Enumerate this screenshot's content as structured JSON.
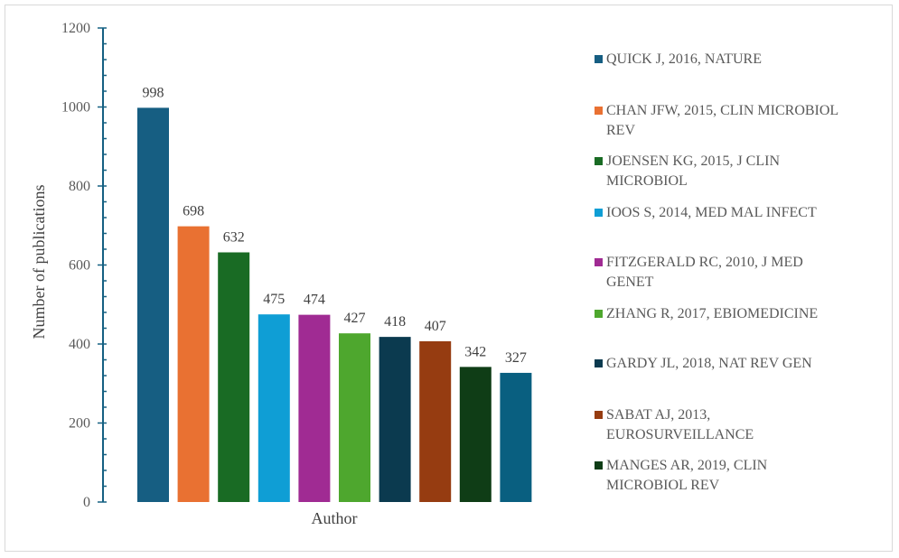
{
  "chart_data": {
    "type": "bar",
    "title": "",
    "xlabel": "Author",
    "ylabel": "Number of publications",
    "ylim": [
      0,
      1200
    ],
    "yticks": [
      0,
      200,
      400,
      600,
      800,
      1000,
      1200
    ],
    "grid": false,
    "legend_position": "right",
    "categories": [
      "QUICK J, 2016, NATURE",
      "CHAN JFW, 2015, CLIN MICROBIOL REV",
      "JOENSEN KG, 2015, J CLIN MICROBIOL",
      "IOOS S, 2014, MED MAL INFECT",
      "FITZGERALD RC, 2010, J MED GENET",
      "ZHANG R, 2017, EBIOMEDICINE",
      "GARDY JL, 2018, NAT REV GEN",
      "SABAT AJ, 2013, EUROSURVEILLANCE",
      "MANGES AR, 2019, CLIN MICROBIOL REV",
      ""
    ],
    "legend_lines": [
      [
        "QUICK J, 2016, NATURE"
      ],
      [
        "CHAN JFW, 2015, CLIN MICROBIOL",
        "REV"
      ],
      [
        "JOENSEN KG, 2015, J CLIN",
        "MICROBIOL"
      ],
      [
        "IOOS S, 2014, MED MAL INFECT"
      ],
      [
        "FITZGERALD RC, 2010, J MED",
        "GENET"
      ],
      [
        "ZHANG R, 2017, EBIOMEDICINE"
      ],
      [
        "GARDY JL, 2018, NAT REV GEN"
      ],
      [
        "SABAT AJ, 2013,",
        "EUROSURVEILLANCE"
      ],
      [
        "MANGES AR, 2019, CLIN",
        "MICROBIOL REV"
      ]
    ],
    "values": [
      998,
      698,
      632,
      475,
      474,
      427,
      418,
      407,
      342,
      327
    ],
    "colors": [
      "#165e82",
      "#e97132",
      "#196b24",
      "#0f9ed5",
      "#a02b93",
      "#4ea72e",
      "#0b3a4f",
      "#963c11",
      "#0f3d16",
      "#095f80"
    ],
    "axis_color": "#156082"
  }
}
